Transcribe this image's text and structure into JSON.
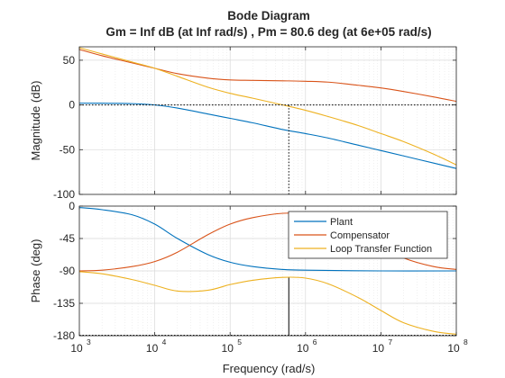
{
  "chart_data": {
    "type": "line",
    "title": "Bode Diagram",
    "subtitle": "Gm = Inf dB (at Inf rad/s) ,  Pm = 80.6 deg (at 6e+05 rad/s)",
    "xlabel": "Frequency  (rad/s)",
    "x_scale": "log",
    "xlim": [
      1000,
      100000000
    ],
    "x_ticks": [
      {
        "base": "10",
        "exp": "3",
        "value": 1000
      },
      {
        "base": "10",
        "exp": "4",
        "value": 10000
      },
      {
        "base": "10",
        "exp": "5",
        "value": 100000
      },
      {
        "base": "10",
        "exp": "6",
        "value": 1000000
      },
      {
        "base": "10",
        "exp": "7",
        "value": 10000000
      },
      {
        "base": "10",
        "exp": "8",
        "value": 100000000
      }
    ],
    "grid": true,
    "legend_location": "top-right of phase plot",
    "crossover_frequency": 600000,
    "panels": [
      {
        "id": "magnitude",
        "ylabel": "Magnitude (dB)",
        "ylim": [
          -100,
          65
        ],
        "y_ticks": [
          {
            "label": "50",
            "value": 50
          },
          {
            "label": "0",
            "value": 0
          },
          {
            "label": "-50",
            "value": -50
          },
          {
            "label": "-100",
            "value": -100
          }
        ],
        "series": [
          {
            "name": "Plant",
            "color": "#0072BD",
            "x": [
              1000,
              2000,
              5000,
              10000,
              20000,
              50000,
              100000,
              200000,
              500000,
              1000000,
              2000000,
              5000000,
              10000000,
              20000000,
              50000000,
              100000000
            ],
            "y": [
              2,
              1.9,
              1.5,
              0,
              -3.5,
              -10,
              -15,
              -20,
              -27.5,
              -32,
              -37,
              -45,
              -51,
              -57,
              -65,
              -71
            ]
          },
          {
            "name": "Compensator",
            "color": "#D95319",
            "x": [
              1000,
              2000,
              5000,
              10000,
              20000,
              50000,
              100000,
              200000,
              500000,
              1000000,
              2000000,
              5000000,
              10000000,
              20000000,
              50000000,
              100000000
            ],
            "y": [
              62,
              55,
              47,
              41,
              35,
              30,
              28,
              27.5,
              27,
              26.5,
              25.5,
              22,
              19,
              15,
              9,
              4
            ]
          },
          {
            "name": "Loop Transfer Function",
            "color": "#EDB120",
            "x": [
              1000,
              2000,
              5000,
              10000,
              20000,
              50000,
              100000,
              200000,
              500000,
              1000000,
              2000000,
              5000000,
              10000000,
              20000000,
              50000000,
              100000000
            ],
            "y": [
              64,
              57,
              48,
              41,
              32,
              20,
              13,
              7.5,
              0,
              -6,
              -13,
              -23,
              -32,
              -41,
              -55,
              -67
            ]
          }
        ]
      },
      {
        "id": "phase",
        "ylabel": "Phase (deg)",
        "ylim": [
          -180,
          0
        ],
        "y_ticks": [
          {
            "label": "0",
            "value": 0
          },
          {
            "label": "-45",
            "value": -45
          },
          {
            "label": "-90",
            "value": -90
          },
          {
            "label": "-135",
            "value": -135
          },
          {
            "label": "-180",
            "value": -180
          }
        ],
        "series": [
          {
            "name": "Plant",
            "color": "#0072BD",
            "x": [
              1000,
              2000,
              5000,
              10000,
              20000,
              50000,
              100000,
              200000,
              500000,
              1000000,
              10000000,
              100000000
            ],
            "y": [
              -2,
              -5,
              -12,
              -25,
              -45,
              -67,
              -78,
              -84,
              -88,
              -89,
              -90,
              -90
            ]
          },
          {
            "name": "Compensator",
            "color": "#D95319",
            "x": [
              1000,
              2000,
              5000,
              10000,
              20000,
              50000,
              100000,
              200000,
              500000,
              1000000,
              2000000,
              5000000,
              10000000,
              20000000,
              50000000,
              100000000
            ],
            "y": [
              -90,
              -89,
              -84,
              -77,
              -64,
              -40,
              -25,
              -16,
              -10,
              -11,
              -17,
              -35,
              -55,
              -72,
              -84,
              -88
            ]
          },
          {
            "name": "Loop Transfer Function",
            "color": "#EDB120",
            "x": [
              1000,
              2000,
              5000,
              10000,
              20000,
              50000,
              100000,
              200000,
              500000,
              1000000,
              2000000,
              5000000,
              10000000,
              20000000,
              50000000,
              100000000
            ],
            "y": [
              -91,
              -94,
              -102,
              -110,
              -118,
              -117,
              -109,
              -103,
              -99,
              -100,
              -108,
              -127,
              -145,
              -162,
              -174,
              -178
            ]
          }
        ],
        "markers": [
          {
            "x": 600000,
            "y_from": -180,
            "y_to": -99.4
          }
        ]
      }
    ],
    "legend": [
      {
        "label": "Plant",
        "color": "#0072BD"
      },
      {
        "label": "Compensator",
        "color": "#D95319"
      },
      {
        "label": "Loop Transfer Function",
        "color": "#EDB120"
      }
    ]
  }
}
